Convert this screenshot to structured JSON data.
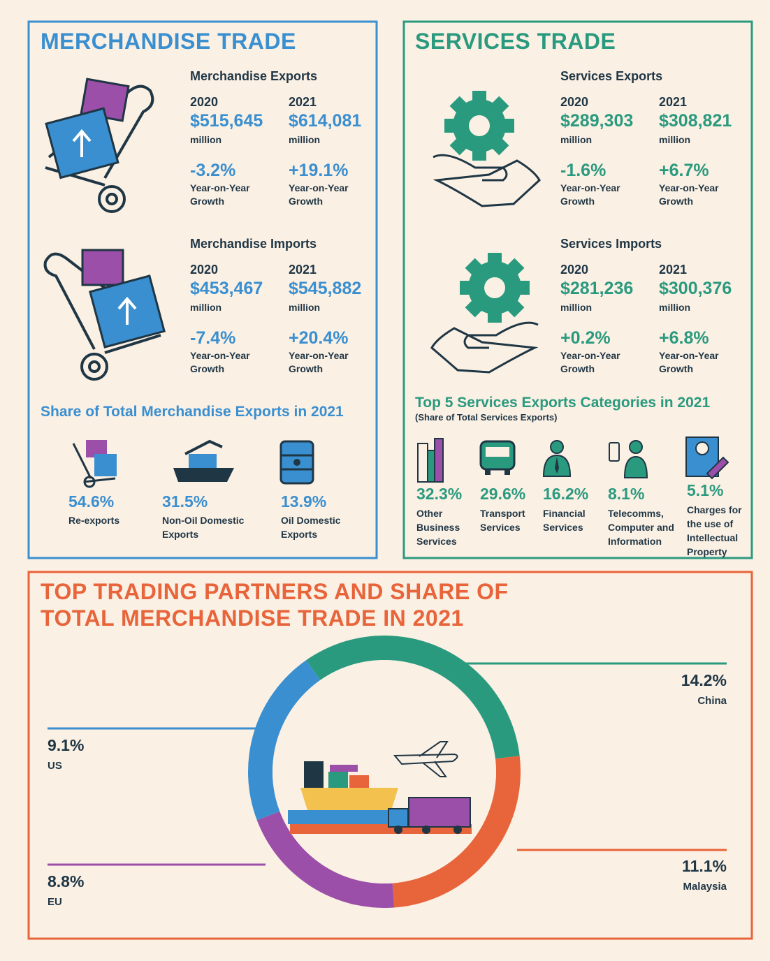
{
  "merchandise": {
    "title": "MERCHANDISE TRADE",
    "exports": {
      "heading": "Merchandise Exports",
      "years": [
        {
          "year": "2020",
          "value": "$515,645",
          "unit": "million",
          "growth": "-3.2%",
          "growth_label": "Year-on-Year Growth"
        },
        {
          "year": "2021",
          "value": "$614,081",
          "unit": "million",
          "growth": "+19.1%",
          "growth_label": "Year-on-Year Growth"
        }
      ]
    },
    "imports": {
      "heading": "Merchandise Imports",
      "years": [
        {
          "year": "2020",
          "value": "$453,467",
          "unit": "million",
          "growth": "-7.4%",
          "growth_label": "Year-on-Year Growth"
        },
        {
          "year": "2021",
          "value": "$545,882",
          "unit": "million",
          "growth": "+20.4%",
          "growth_label": "Year-on-Year Growth"
        }
      ]
    },
    "share": {
      "title": "Share of Total Merchandise Exports in 2021",
      "items": [
        {
          "value": "54.6%",
          "label": "Re-exports"
        },
        {
          "value": "31.5%",
          "label": "Non-Oil Domestic Exports"
        },
        {
          "value": "13.9%",
          "label": "Oil Domestic Exports"
        }
      ]
    }
  },
  "services": {
    "title": "SERVICES TRADE",
    "exports": {
      "heading": "Services Exports",
      "years": [
        {
          "year": "2020",
          "value": "$289,303",
          "unit": "million",
          "growth": "-1.6%",
          "growth_label": "Year-on-Year Growth"
        },
        {
          "year": "2021",
          "value": "$308,821",
          "unit": "million",
          "growth": "+6.7%",
          "growth_label": "Year-on-Year Growth"
        }
      ]
    },
    "imports": {
      "heading": "Services Imports",
      "years": [
        {
          "year": "2020",
          "value": "$281,236",
          "unit": "million",
          "growth": "+0.2%",
          "growth_label": "Year-on-Year Growth"
        },
        {
          "year": "2021",
          "value": "$300,376",
          "unit": "million",
          "growth": "+6.8%",
          "growth_label": "Year-on-Year Growth"
        }
      ]
    },
    "top5": {
      "title": "Top 5 Services Exports Categories in 2021",
      "subtitle": "(Share of Total Services Exports)",
      "items": [
        {
          "value": "32.3%",
          "label": "Other Business Services"
        },
        {
          "value": "29.6%",
          "label": "Transport Services"
        },
        {
          "value": "16.2%",
          "label": "Financial Services"
        },
        {
          "value": "8.1%",
          "label": "Telecomms, Computer and Information"
        },
        {
          "value": "5.1%",
          "label": "Charges for the use of Intellectual Property"
        }
      ]
    }
  },
  "chart_data": {
    "type": "donut",
    "title": "TOP TRADING PARTNERS AND SHARE OF TOTAL MERCHANDISE TRADE IN 2021",
    "categories": [
      "China",
      "Malaysia",
      "EU",
      "US"
    ],
    "values": [
      14.2,
      11.1,
      8.8,
      9.1
    ],
    "value_labels": [
      "14.2%",
      "11.1%",
      "8.8%",
      "9.1%"
    ],
    "colors": [
      "#2a9a7f",
      "#e8643a",
      "#9b4fa8",
      "#3a8fd0"
    ]
  }
}
